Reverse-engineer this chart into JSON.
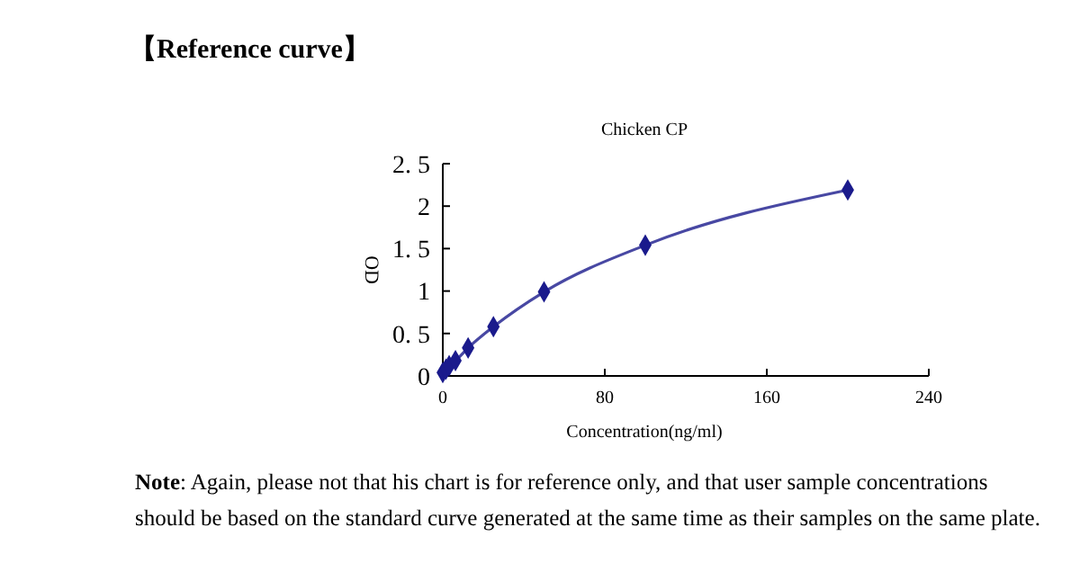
{
  "chart_data": {
    "type": "line",
    "title": "Chicken CP",
    "xlabel": "Concentration(ng/ml)",
    "ylabel": "OD",
    "annotations": [
      "【Reference curve】",
      "Note: Again, please not that his chart is for reference only, and that user sample concentrations should be based on the standard curve generated at the same time as their samples on the same plate."
    ],
    "x": [
      0,
      1.56,
      3.13,
      6.25,
      12.5,
      25,
      50,
      100,
      200
    ],
    "series": [
      {
        "color": "#1a1a8c",
        "values": [
          0.04,
          0.08,
          0.12,
          0.18,
          0.33,
          0.58,
          0.99,
          1.54,
          2.19
        ]
      }
    ],
    "xlim": [
      0,
      240
    ],
    "xticks": [
      0,
      80,
      160,
      240
    ],
    "ylim": [
      0,
      2.5
    ],
    "yticks": [
      0,
      {
        "value": 0.5,
        "label": "0. 5"
      },
      1,
      {
        "value": 1.5,
        "label": "1. 5"
      },
      2,
      {
        "value": 2.5,
        "label": "2. 5"
      }
    ],
    "marker": "diamond",
    "line_style": "solid"
  }
}
